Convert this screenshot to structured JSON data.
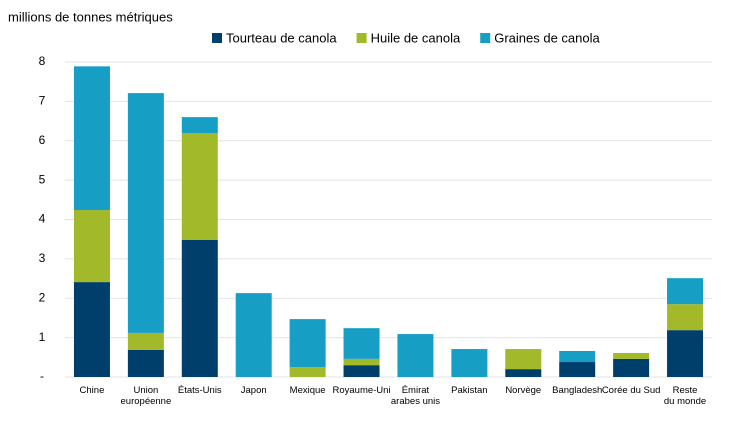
{
  "chart_data": {
    "type": "stacked_bar",
    "y_axis_label": "millions de tonnes métriques",
    "categories": [
      "Chine",
      "Union\neuropéenne",
      "États-Unis",
      "Japon",
      "Mexique",
      "Royaume-Uni",
      "Émirat\narabes unis",
      "Pakistan",
      "Norvège",
      "Bangladesh",
      "Corée du Sud",
      "Reste\ndu monde"
    ],
    "series": [
      {
        "name": "Tourteau de canola",
        "color": "#003f6b",
        "values": [
          2.41,
          0.69,
          3.48,
          0,
          0,
          0.3,
          0,
          0,
          0.2,
          0.38,
          0.46,
          1.19
        ]
      },
      {
        "name": "Huile de canola",
        "color": "#a2b92a",
        "values": [
          1.83,
          0.43,
          2.71,
          0,
          0.25,
          0.16,
          0,
          0,
          0.51,
          0,
          0.15,
          0.66
        ]
      },
      {
        "name": "Graines de canola",
        "color": "#169ec4",
        "values": [
          3.65,
          6.09,
          0.41,
          2.13,
          1.22,
          0.78,
          1.09,
          0.71,
          0,
          0.28,
          0,
          0.66
        ]
      }
    ],
    "ylim": [
      0,
      8
    ],
    "yticks": [
      {
        "value": 0,
        "label": "-"
      },
      1,
      2,
      3,
      4,
      5,
      6,
      7,
      8
    ],
    "grid": true,
    "legend": "top"
  }
}
